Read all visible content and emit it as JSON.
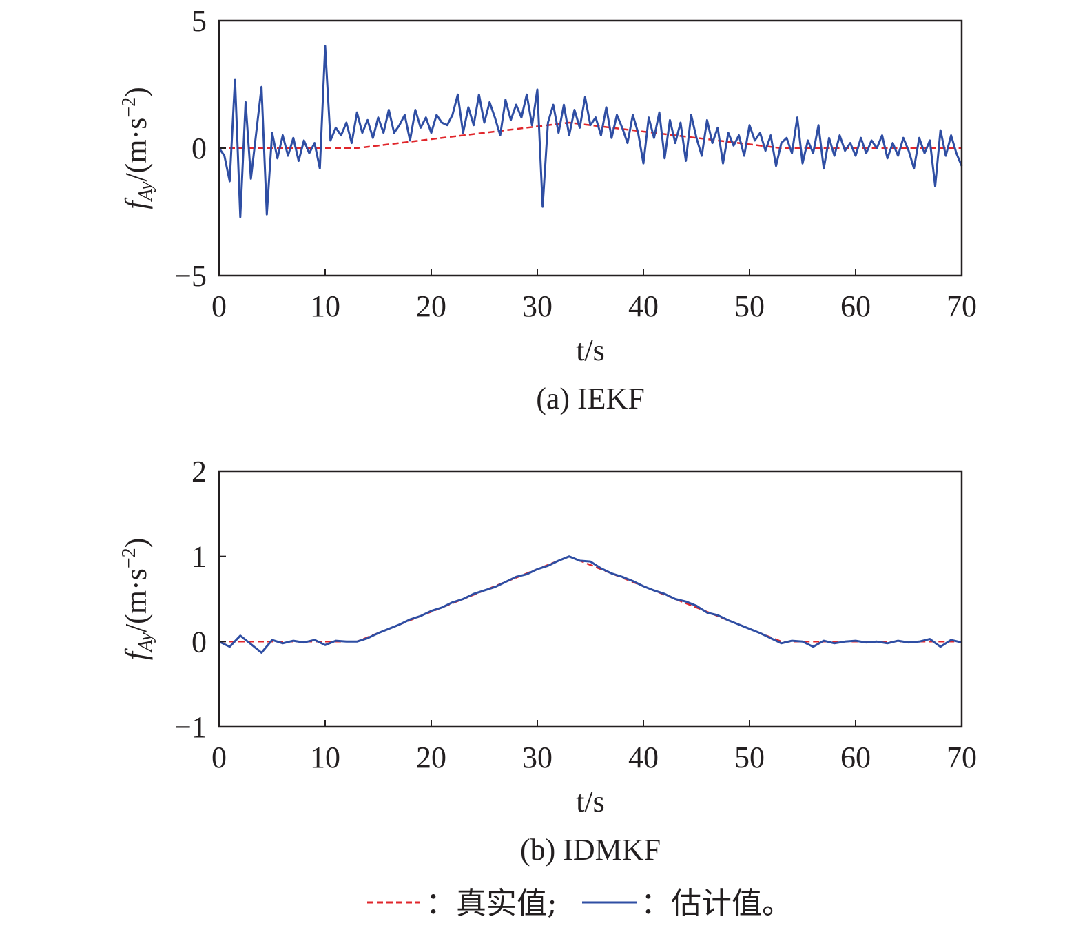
{
  "colors": {
    "true": "#e0262b",
    "estimate": "#2f4ea3",
    "axis": "#231f20"
  },
  "legend": {
    "true_label": "：真实值;",
    "estimate_label": "：估计值。"
  },
  "chart_data": [
    {
      "type": "line",
      "caption": "(a) IEKF",
      "xlabel": "t/s",
      "ylabel": {
        "main": "f",
        "sub": "Ay",
        "unit": "/(m·s",
        "exp": "−2",
        "close": ")"
      },
      "xlim": [
        0,
        70
      ],
      "ylim": [
        -5,
        5
      ],
      "xticks": [
        "0",
        "10",
        "20",
        "30",
        "40",
        "50",
        "60",
        "70"
      ],
      "yticks": [
        "−5",
        "0",
        "5"
      ],
      "ytick_values": [
        -5,
        0,
        5
      ],
      "series": [
        {
          "name": "真实值",
          "style": "dashed",
          "points": [
            [
              0,
              0
            ],
            [
              13,
              0
            ],
            [
              33,
              1
            ],
            [
              53,
              0
            ],
            [
              70,
              0
            ]
          ]
        },
        {
          "name": "估计值",
          "style": "solid",
          "t_step": 0.5,
          "values": [
            0,
            -0.3,
            -1.3,
            2.7,
            -2.7,
            1.8,
            -1.2,
            0.6,
            2.4,
            -2.6,
            0.6,
            -0.4,
            0.5,
            -0.3,
            0.4,
            -0.5,
            0.3,
            -0.2,
            0.2,
            -0.8,
            4.0,
            0.3,
            0.8,
            0.5,
            1.0,
            0.2,
            1.4,
            0.6,
            1.1,
            0.4,
            1.2,
            0.6,
            1.5,
            0.6,
            0.9,
            1.3,
            0.3,
            1.5,
            0.8,
            1.2,
            0.6,
            1.3,
            1.0,
            0.9,
            1.3,
            2.1,
            0.6,
            1.6,
            0.9,
            2.1,
            1.0,
            1.8,
            1.2,
            0.5,
            1.9,
            1.1,
            1.7,
            1.2,
            2.1,
            0.9,
            2.3,
            -2.3,
            1.0,
            1.7,
            0.6,
            1.7,
            0.5,
            1.5,
            0.8,
            2.0,
            0.9,
            1.2,
            0.5,
            1.6,
            0.4,
            1.3,
            0.8,
            0.2,
            1.3,
            0.6,
            -0.6,
            1.2,
            0.4,
            1.4,
            -0.4,
            1.1,
            0.2,
            1.0,
            -0.5,
            1.3,
            0.4,
            -0.3,
            1.1,
            0.2,
            0.8,
            -0.6,
            0.6,
            0.1,
            0.5,
            -0.3,
            0.9,
            0.3,
            0.6,
            -0.1,
            0.5,
            -0.7,
            0.2,
            0.4,
            -0.2,
            1.2,
            -0.6,
            0.3,
            -0.2,
            0.9,
            -0.8,
            0.4,
            -0.3,
            0.5,
            -0.1,
            0.2,
            -0.3,
            0.4,
            -0.2,
            0.3,
            0.0,
            0.5,
            -0.4,
            0.2,
            -0.3,
            0.4,
            -0.1,
            -0.8,
            0.4,
            -0.2,
            0.3,
            -1.5,
            0.7,
            -0.3,
            0.5,
            -0.2,
            -0.7
          ]
        }
      ]
    },
    {
      "type": "line",
      "caption": "(b) IDMKF",
      "xlabel": "t/s",
      "ylabel": {
        "main": "f",
        "sub": "Ay",
        "unit": "/(m·s",
        "exp": "−2",
        "close": ")"
      },
      "xlim": [
        0,
        70
      ],
      "ylim": [
        -1,
        2
      ],
      "xticks": [
        "0",
        "10",
        "20",
        "30",
        "40",
        "50",
        "60",
        "70"
      ],
      "yticks": [
        "−1",
        "0",
        "1",
        "2"
      ],
      "ytick_values": [
        -1,
        0,
        1,
        2
      ],
      "series": [
        {
          "name": "真实值",
          "style": "dashed",
          "points": [
            [
              0,
              0
            ],
            [
              13,
              0
            ],
            [
              33,
              1
            ],
            [
              53,
              0
            ],
            [
              70,
              0
            ]
          ]
        },
        {
          "name": "估计值",
          "style": "solid",
          "t_step": 1,
          "values": [
            0,
            -0.06,
            0.07,
            -0.03,
            -0.13,
            0.02,
            -0.02,
            0.01,
            -0.01,
            0.02,
            -0.04,
            0.01,
            0.0,
            0.0,
            0.04,
            0.1,
            0.15,
            0.2,
            0.26,
            0.3,
            0.36,
            0.4,
            0.46,
            0.5,
            0.56,
            0.6,
            0.64,
            0.7,
            0.76,
            0.79,
            0.85,
            0.89,
            0.95,
            1.0,
            0.95,
            0.94,
            0.86,
            0.8,
            0.76,
            0.71,
            0.65,
            0.6,
            0.56,
            0.5,
            0.47,
            0.42,
            0.34,
            0.31,
            0.25,
            0.2,
            0.15,
            0.1,
            0.04,
            -0.02,
            0.01,
            0.0,
            -0.06,
            0.01,
            -0.02,
            0.0,
            0.01,
            -0.01,
            0.0,
            -0.02,
            0.01,
            -0.01,
            0.0,
            0.03,
            -0.06,
            0.02,
            -0.01
          ]
        }
      ]
    }
  ]
}
